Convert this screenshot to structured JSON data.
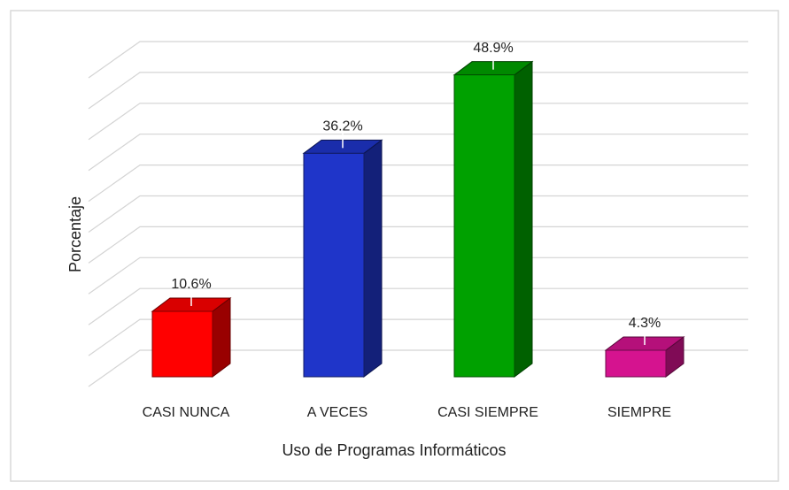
{
  "chart_data": {
    "type": "bar3d",
    "categories": [
      "CASI NUNCA",
      "A VECES",
      "CASI SIEMPRE",
      "SIEMPRE"
    ],
    "values": [
      10.6,
      36.2,
      48.9,
      4.3
    ],
    "value_labels": [
      "10.6%",
      "36.2%",
      "48.9%",
      "4.3%"
    ],
    "colors": [
      "#ff0000",
      "#1f35c9",
      "#00a100",
      "#d5138f"
    ],
    "x_label": "Uso de Programas Informáticos",
    "y_label": "Porcentaje",
    "ylim": [
      0,
      50
    ],
    "yticks": [
      0,
      5,
      10,
      15,
      20,
      25,
      30,
      35,
      40,
      45,
      50
    ],
    "grid": true
  }
}
